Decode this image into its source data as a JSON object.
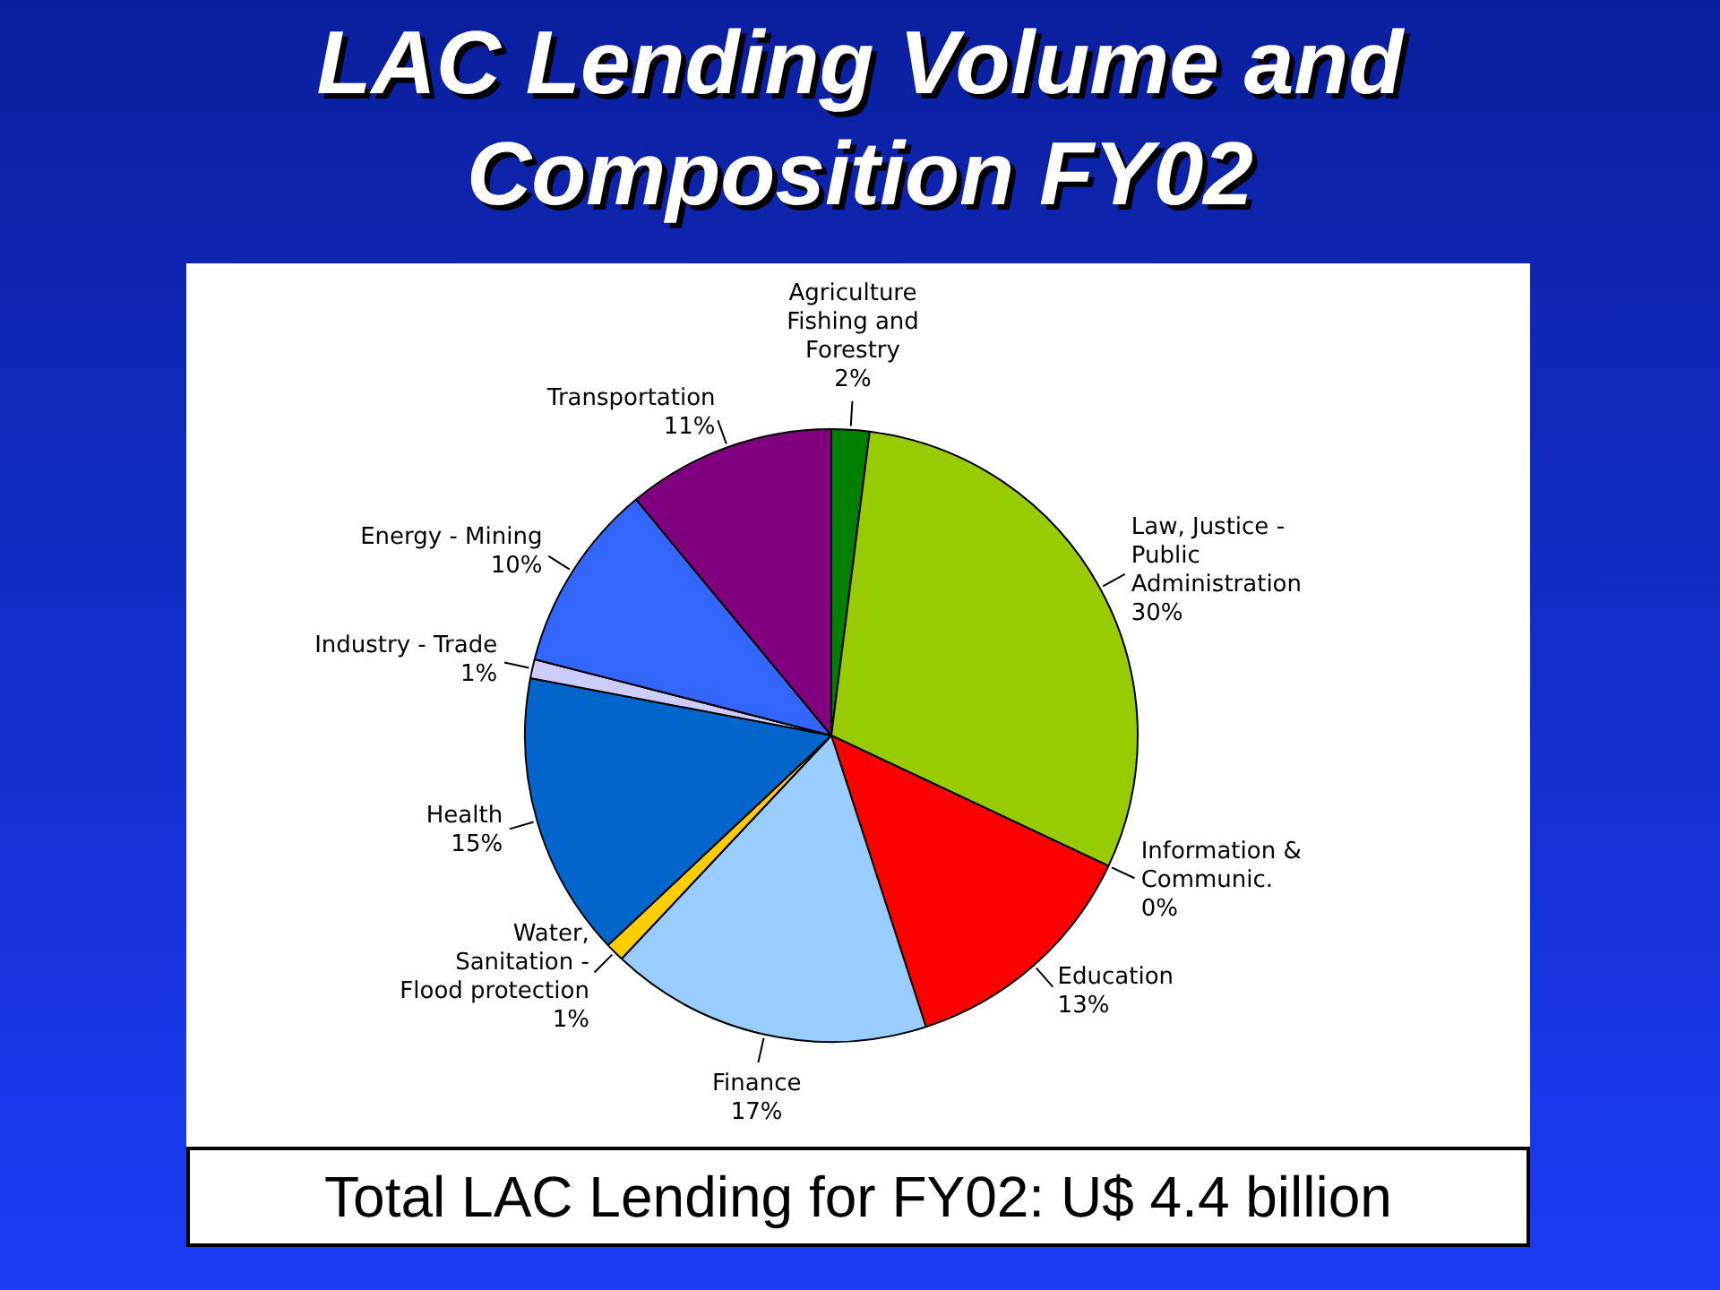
{
  "chart_data": {
    "type": "pie",
    "title": "LAC Lending Volume and Composition FY02",
    "categories": [
      "Agriculture Fishing and Forestry",
      "Law, Justice - Public Administration",
      "Information & Communic.",
      "Education",
      "Finance",
      "Water, Sanitation - Flood protection",
      "Health",
      "Industry - Trade",
      "Energy - Mining",
      "Transportation"
    ],
    "values": [
      2,
      30,
      0,
      13,
      17,
      1,
      15,
      1,
      10,
      11
    ],
    "value_labels": [
      "2%",
      "30%",
      "0%",
      "13%",
      "17%",
      "1%",
      "15%",
      "1%",
      "10%",
      "11%"
    ],
    "colors": [
      "#008000",
      "#99cc00",
      "#ffff00",
      "#ff0000",
      "#99ccff",
      "#ffcc00",
      "#0066cc",
      "#ccccff",
      "#3366ff",
      "#800080"
    ],
    "annotations": [
      "Total LAC Lending for FY02: U$ 4.4 billion"
    ]
  }
}
